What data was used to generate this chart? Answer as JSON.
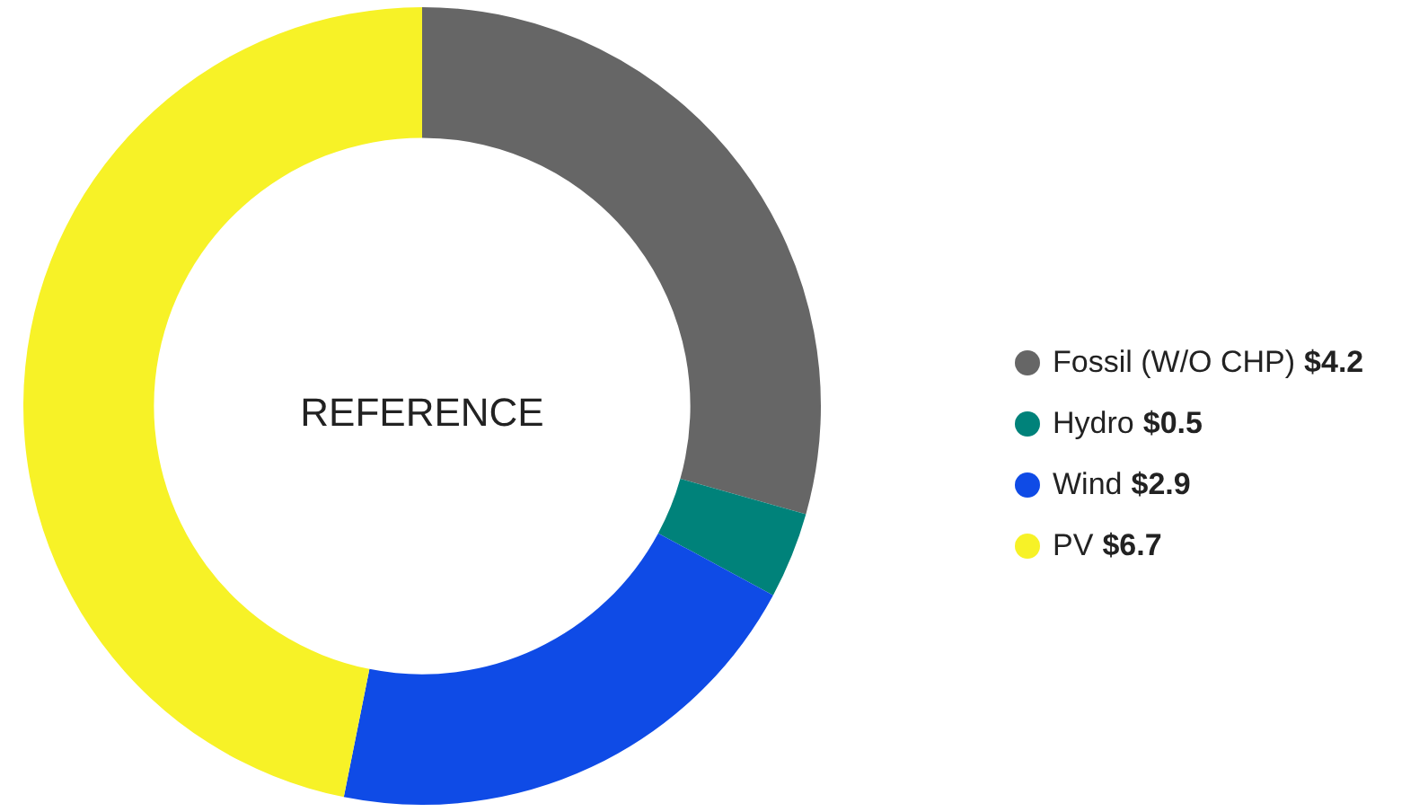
{
  "chart_data": {
    "type": "donut",
    "title": "REFERENCE",
    "categories": [
      "Fossil (W/O CHP)",
      "Hydro",
      "Wind",
      "PV"
    ],
    "values": [
      4.2,
      0.5,
      2.9,
      6.7
    ],
    "colors": [
      "#666666",
      "#00827a",
      "#0f4be6",
      "#f7f227"
    ],
    "value_labels": [
      "$4.2",
      "$0.5",
      "$2.9",
      "$6.7"
    ],
    "legend": "right"
  }
}
